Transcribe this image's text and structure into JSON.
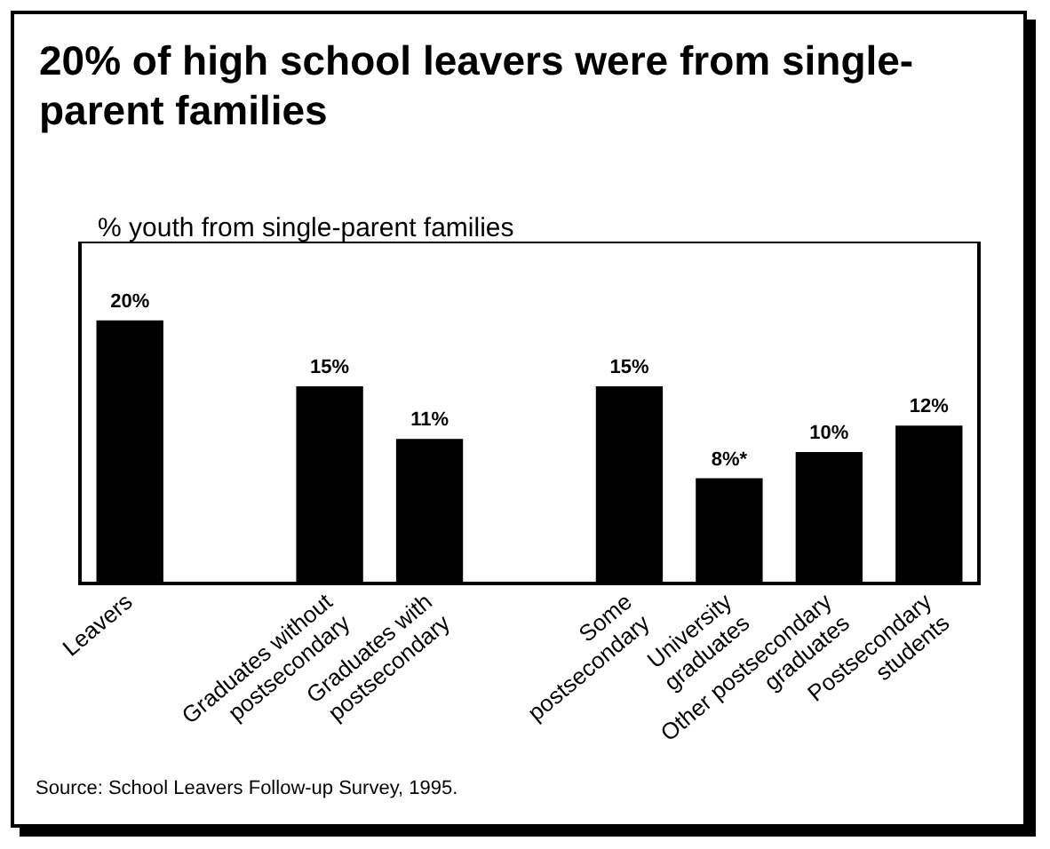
{
  "chart_data": {
    "type": "bar",
    "title": "20% of high school leavers were from single-parent families",
    "ylabel": "% youth from single-parent families",
    "categories": [
      "Leavers",
      null,
      "Graduates without\npostsecondary",
      "Graduates with\npostsecondary",
      null,
      "Some\npostsecondary",
      "University\ngraduates",
      "Other postsecondary\ngraduates",
      "Postsecondary\nstudents"
    ],
    "values": [
      20,
      null,
      15,
      11,
      null,
      15,
      8,
      10,
      12
    ],
    "value_labels": [
      "20%",
      null,
      "15%",
      "11%",
      null,
      "15%",
      "8%*",
      "10%",
      "12%"
    ],
    "color": "#000000",
    "ylim": [
      0,
      26
    ],
    "grid": false,
    "legend": false,
    "annotations": [
      "Source: School Leavers Follow-up Survey, 1995."
    ]
  }
}
